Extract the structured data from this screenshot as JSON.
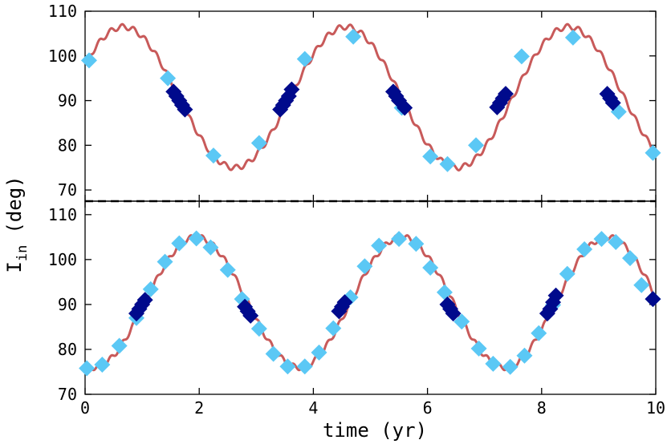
{
  "chart_data": [
    {
      "type": "line",
      "panel": "top",
      "ylabel": "I_in (deg)",
      "xlim": [
        0,
        10
      ],
      "ylim": [
        67.5,
        110
      ],
      "xticks": [
        0,
        2,
        4,
        6,
        8,
        10
      ],
      "yticks": [
        70,
        80,
        90,
        100,
        110
      ],
      "ytick_labels": [
        "70",
        "80",
        "90",
        "100",
        "110"
      ],
      "model": {
        "mean": 90.75,
        "amplitude": 15.75,
        "period": 3.9,
        "phase_peak": 0.67,
        "ripple_amplitude": 0.6,
        "ripple_period": 0.2
      },
      "series": [
        {
          "name": "model",
          "style": "line",
          "color": "#c85a5a"
        },
        {
          "name": "light points",
          "style": "marker",
          "color": "#5bc8f5",
          "x": [
            0.07,
            1.45,
            2.25,
            3.05,
            3.85,
            4.7,
            5.55,
            6.05,
            6.35,
            6.85,
            7.65,
            8.55,
            9.35,
            9.95
          ],
          "y": [
            99,
            95,
            77.7,
            80.5,
            99.3,
            104.3,
            88.4,
            77.5,
            75.8,
            80,
            99.9,
            104.1,
            87.5,
            78.3
          ]
        },
        {
          "name": "dark points",
          "style": "marker",
          "color": "#000a8c",
          "x": [
            1.55,
            1.6,
            1.65,
            1.7,
            1.75,
            3.42,
            3.47,
            3.52,
            3.57,
            3.62,
            5.4,
            5.45,
            5.5,
            5.6,
            7.22,
            7.27,
            7.32,
            7.37,
            9.15,
            9.2,
            9.25
          ],
          "y": [
            92,
            91,
            90,
            89,
            88,
            88,
            89,
            90,
            91,
            92.5,
            92,
            91,
            90,
            88.4,
            88.5,
            89.5,
            90.5,
            91.5,
            91.5,
            90.5,
            89.5
          ]
        }
      ]
    },
    {
      "type": "line",
      "panel": "bottom",
      "xlabel": "time (yr)",
      "xlim": [
        0,
        10
      ],
      "ylim": [
        70,
        113
      ],
      "xticks": [
        0,
        2,
        4,
        6,
        8,
        10
      ],
      "xtick_labels": [
        "0",
        "2",
        "4",
        "6",
        "8",
        "10"
      ],
      "yticks": [
        70,
        80,
        90,
        100,
        110
      ],
      "ytick_labels": [
        "70",
        "80",
        "90",
        "100",
        "110"
      ],
      "model": {
        "mean": 90.5,
        "amplitude": 14.5,
        "period": 3.6,
        "phase_peak": 1.95,
        "ripple_amplitude": 0.6,
        "ripple_period": 0.2
      },
      "series": [
        {
          "name": "model",
          "style": "line",
          "color": "#c85a5a"
        },
        {
          "name": "light points",
          "style": "marker",
          "color": "#5bc8f5",
          "x": [
            0.03,
            0.3,
            0.6,
            0.9,
            1.15,
            1.4,
            1.65,
            1.95,
            2.2,
            2.5,
            2.75,
            3.05,
            3.3,
            3.55,
            3.85,
            4.1,
            4.35,
            4.65,
            4.9,
            5.15,
            5.5,
            5.8,
            6.05,
            6.3,
            6.6,
            6.9,
            7.15,
            7.45,
            7.7,
            7.95,
            8.2,
            8.45,
            8.75,
            9.05,
            9.3,
            9.55,
            9.75,
            9.95
          ],
          "y": [
            75.8,
            76.6,
            80.8,
            87,
            93.4,
            99.5,
            103.6,
            104.7,
            102.7,
            97.7,
            91.2,
            84.6,
            79,
            76.2,
            76.2,
            79.3,
            84.7,
            91.6,
            98.5,
            103.1,
            104.6,
            103.5,
            98.2,
            92.7,
            86.2,
            80.2,
            76.8,
            76.1,
            78.6,
            83.6,
            89.9,
            96.8,
            102.3,
            104.6,
            103.9,
            100.3,
            94.3,
            91.2
          ]
        },
        {
          "name": "dark points",
          "style": "marker",
          "color": "#000a8c",
          "x": [
            0.9,
            0.95,
            1.0,
            1.05,
            2.8,
            2.85,
            2.9,
            4.45,
            4.5,
            4.55,
            6.35,
            6.4,
            6.45,
            8.1,
            8.15,
            8.2,
            8.25,
            9.95
          ],
          "y": [
            88,
            89,
            90,
            91,
            89.5,
            88.5,
            87.5,
            88.5,
            89.5,
            90.5,
            90,
            89,
            88,
            88,
            89,
            90.5,
            92,
            91.2
          ]
        }
      ]
    }
  ],
  "axis_labels": {
    "ylabel_main": "I",
    "ylabel_sub": "in",
    "ylabel_unit": "(deg)",
    "xlabel": "time (yr)"
  }
}
